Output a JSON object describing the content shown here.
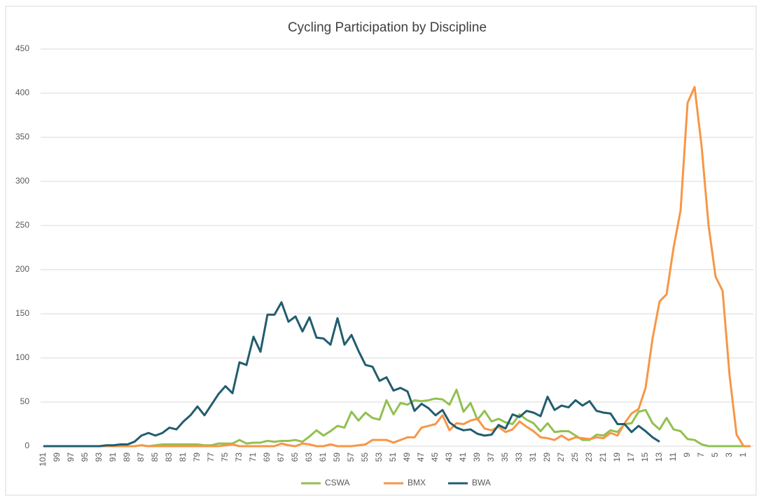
{
  "chart_data": {
    "type": "line",
    "title": "Cycling Participation by Discipline",
    "categories": [
      101,
      null,
      99,
      null,
      97,
      null,
      95,
      null,
      93,
      null,
      91,
      null,
      89,
      null,
      87,
      null,
      85,
      null,
      83,
      null,
      81,
      null,
      79,
      null,
      77,
      null,
      75,
      null,
      73,
      null,
      71,
      null,
      69,
      null,
      67,
      null,
      65,
      null,
      63,
      null,
      61,
      null,
      59,
      null,
      57,
      null,
      55,
      null,
      53,
      null,
      51,
      null,
      49,
      null,
      47,
      null,
      45,
      null,
      43,
      null,
      41,
      null,
      39,
      null,
      37,
      null,
      35,
      null,
      33,
      null,
      31,
      null,
      29,
      null,
      27,
      null,
      25,
      null,
      23,
      null,
      21,
      null,
      19,
      null,
      17,
      null,
      15,
      null,
      13,
      null,
      11,
      null,
      9,
      null,
      7,
      null,
      5,
      null,
      3,
      null,
      1,
      null
    ],
    "series": [
      {
        "name": "CSWA",
        "color": "#92c050",
        "values": [
          0,
          0,
          0,
          0,
          0,
          0,
          0,
          0,
          0,
          0,
          0,
          0,
          0,
          0,
          1,
          0,
          1,
          2,
          2,
          2,
          2,
          2,
          2,
          1,
          1,
          3,
          3,
          3,
          7,
          3,
          4,
          4,
          6,
          5,
          6,
          6,
          7,
          5,
          11,
          18,
          12,
          17,
          23,
          21,
          39,
          29,
          38,
          32,
          30,
          52,
          36,
          49,
          47,
          52,
          51,
          52,
          54,
          53,
          47,
          64,
          39,
          49,
          30,
          40,
          28,
          31,
          27,
          25,
          36,
          30,
          26,
          17,
          26,
          16,
          17,
          17,
          12,
          7,
          7,
          13,
          12,
          18,
          16,
          25,
          26,
          39,
          41,
          26,
          19,
          32,
          19,
          17,
          8,
          7,
          2,
          0,
          0,
          0,
          0,
          0,
          0,
          0
        ]
      },
      {
        "name": "BMX",
        "color": "#f79646",
        "values": [
          0,
          0,
          0,
          0,
          0,
          0,
          0,
          0,
          0,
          0,
          0,
          0,
          0,
          0,
          1,
          0,
          0,
          0,
          0,
          0,
          0,
          0,
          0,
          0,
          0,
          0,
          1,
          2,
          0,
          0,
          0,
          0,
          0,
          0,
          3,
          1,
          0,
          3,
          2,
          0,
          0,
          2,
          0,
          0,
          0,
          1,
          2,
          7,
          7,
          7,
          4,
          7,
          10,
          10,
          21,
          23,
          25,
          35,
          18,
          26,
          25,
          29,
          31,
          20,
          18,
          22,
          16,
          19,
          28,
          22,
          17,
          10,
          9,
          7,
          12,
          7,
          10,
          9,
          8,
          10,
          9,
          15,
          12,
          26,
          37,
          42,
          66,
          122,
          164,
          172,
          225,
          267,
          389,
          407,
          340,
          250,
          192,
          176,
          80,
          13,
          0,
          0
        ]
      },
      {
        "name": "BWA",
        "color": "#215d6e",
        "values": [
          0,
          0,
          0,
          0,
          0,
          0,
          0,
          0,
          0,
          1,
          1,
          2,
          2,
          5,
          12,
          15,
          12,
          15,
          21,
          19,
          28,
          35,
          45,
          35,
          47,
          59,
          68,
          60,
          95,
          92,
          124,
          107,
          149,
          149,
          163,
          141,
          147,
          130,
          146,
          123,
          122,
          115,
          145,
          115,
          126,
          108,
          92,
          90,
          74,
          78,
          63,
          66,
          62,
          40,
          48,
          43,
          35,
          41,
          27,
          21,
          18,
          19,
          14,
          12,
          13,
          24,
          20,
          36,
          33,
          40,
          38,
          34,
          56,
          41,
          46,
          44,
          52,
          46,
          51,
          40,
          38,
          37,
          25,
          25,
          16,
          23,
          17,
          10,
          5,
          null,
          null,
          null,
          null,
          null,
          null,
          null,
          null,
          null,
          null,
          null,
          null,
          null
        ]
      }
    ],
    "ylim": [
      0,
      450
    ],
    "yticks": [
      0,
      50,
      100,
      150,
      200,
      250,
      300,
      350,
      400,
      450
    ],
    "grid": true,
    "legend": "bottom"
  }
}
